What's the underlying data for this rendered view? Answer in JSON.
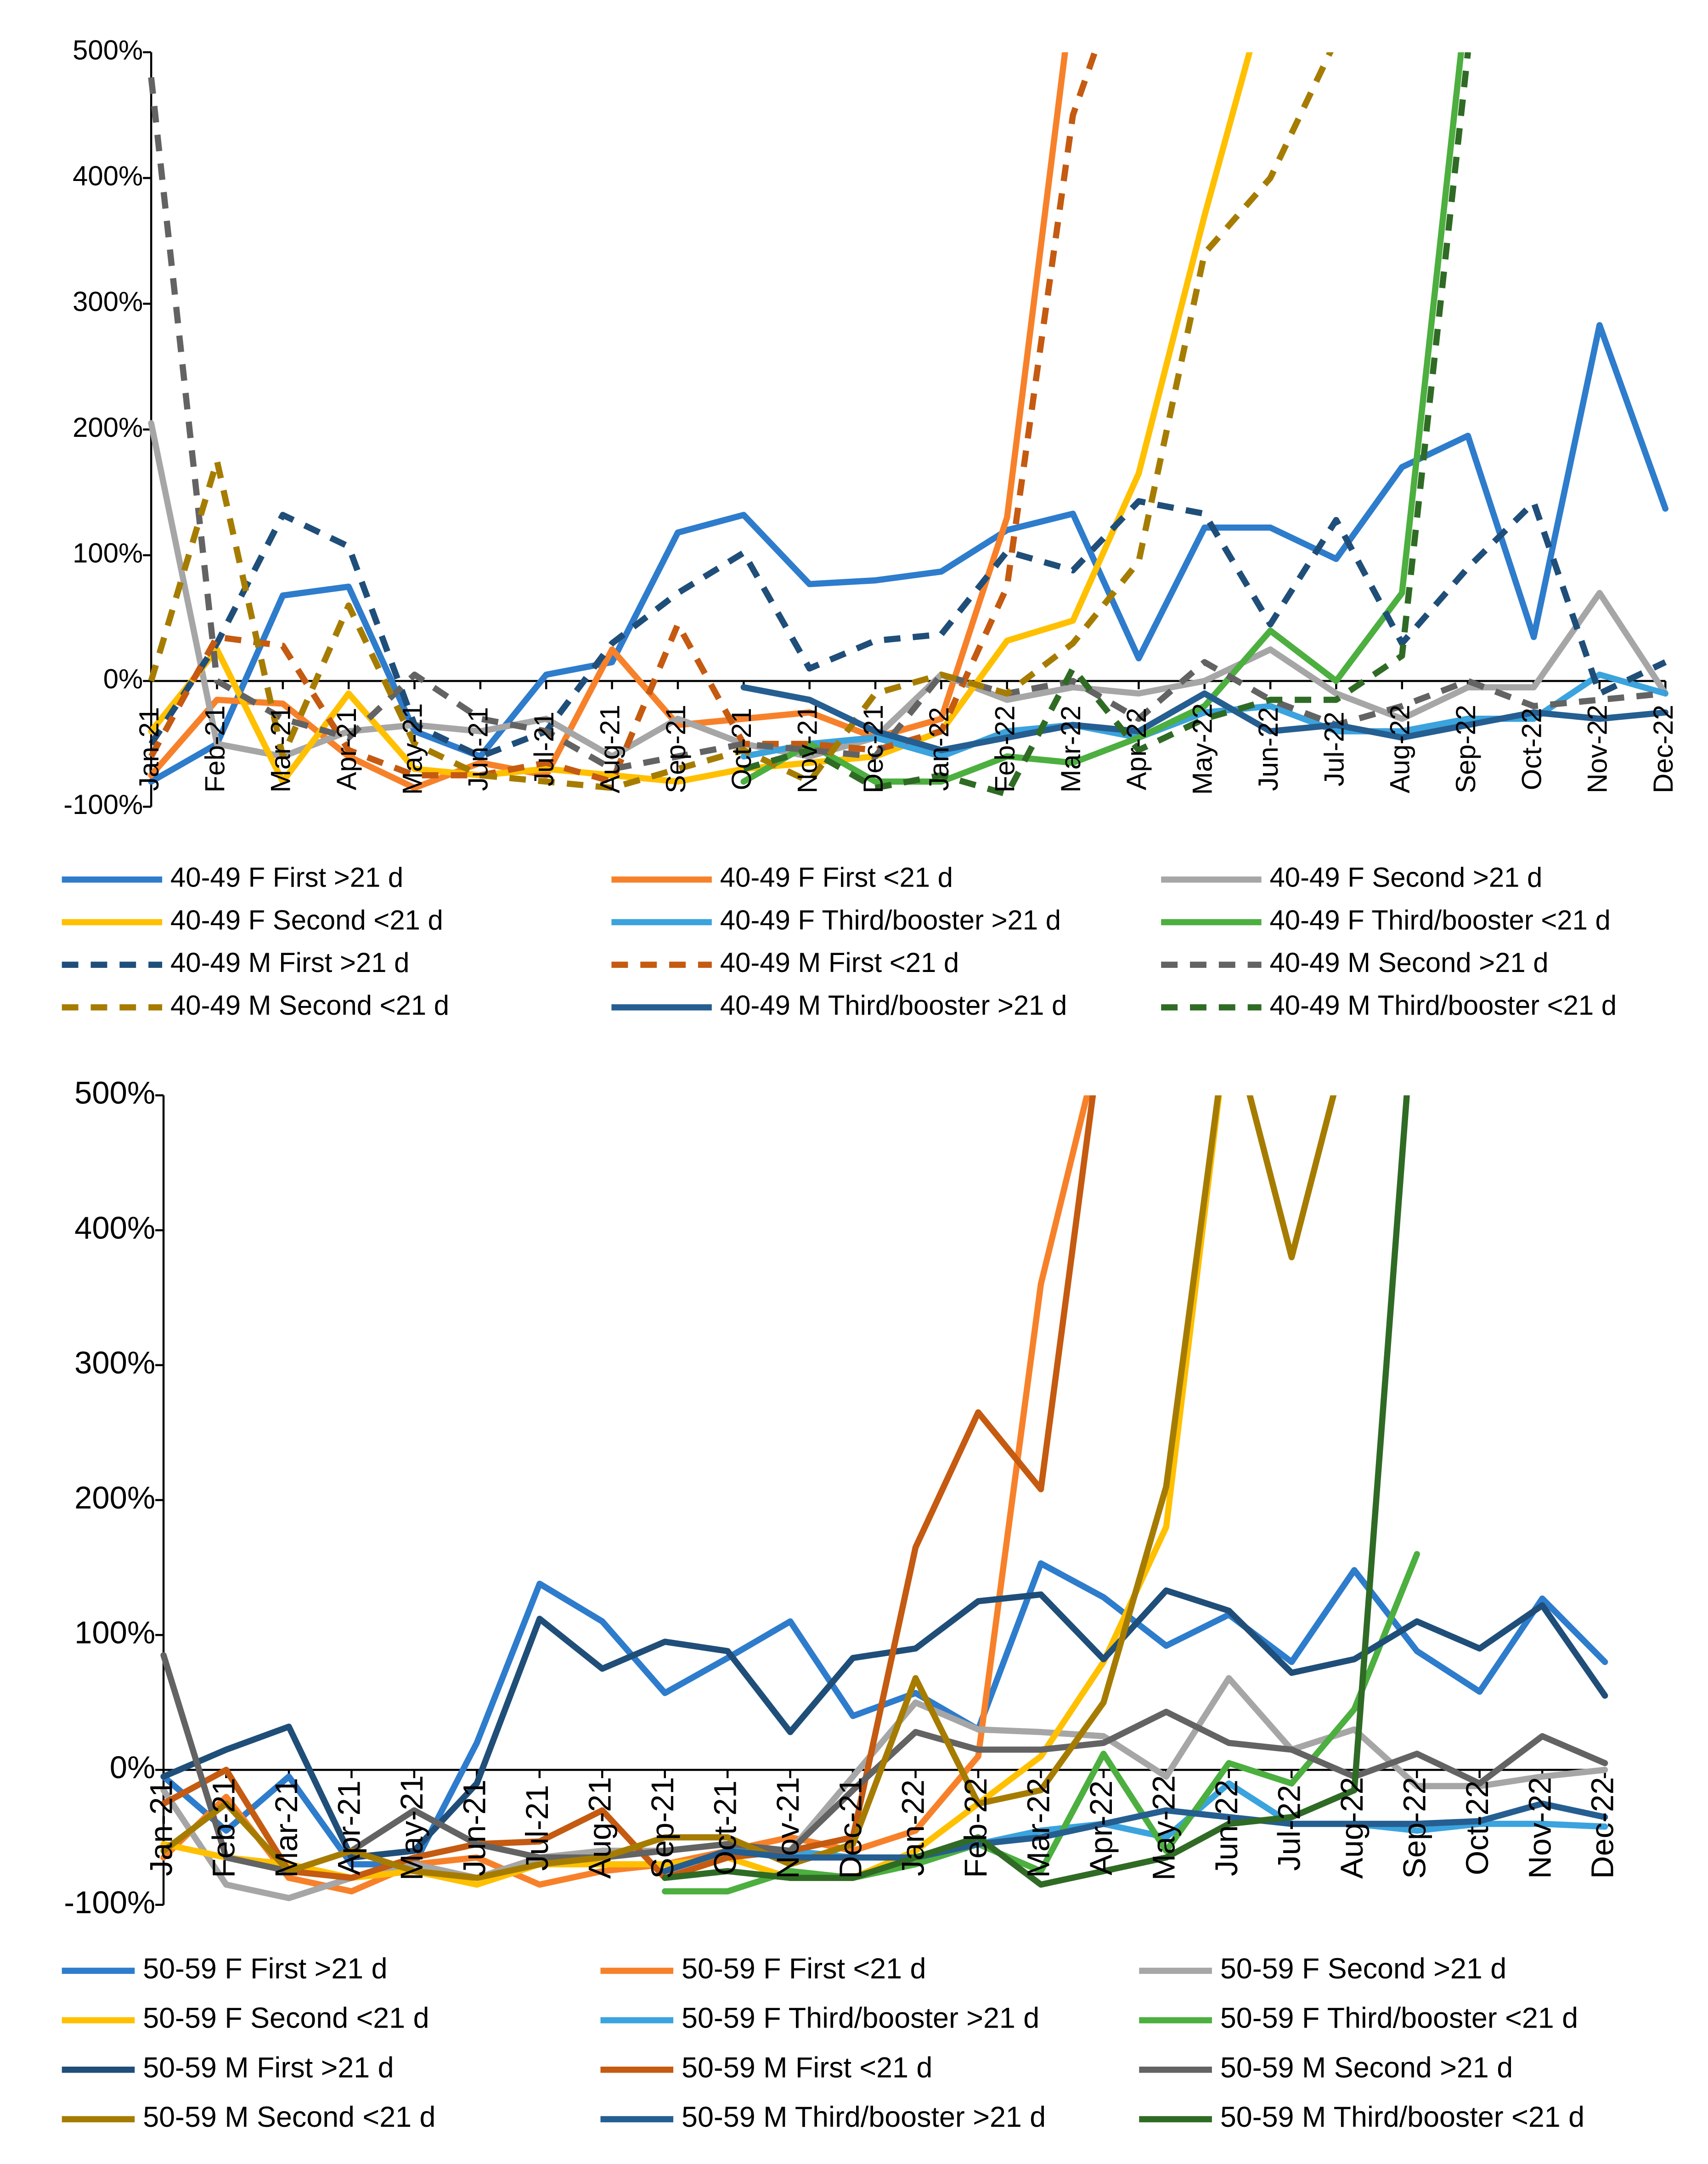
{
  "chart_data": [
    {
      "type": "line",
      "legend": "bottom",
      "categories": [
        "Jan-21",
        "Feb-21",
        "Mar-21",
        "Apr-21",
        "May-21",
        "Jun-21",
        "Jul-21",
        "Aug-21",
        "Sep-21",
        "Oct-21",
        "Nov-21",
        "Dec-21",
        "Jan-22",
        "Feb-22",
        "Mar-22",
        "Apr-22",
        "May-22",
        "Jun-22",
        "Jul-22",
        "Aug-22",
        "Sep-22",
        "Oct-22",
        "Nov-22",
        "Dec-22"
      ],
      "ylim": [
        -100,
        500
      ],
      "yticks": [
        {
          "value": -100,
          "label": "-100%"
        },
        {
          "value": 0,
          "label": "0%"
        },
        {
          "value": 100,
          "label": "100%"
        },
        {
          "value": 200,
          "label": "200%"
        },
        {
          "value": 300,
          "label": "300%"
        },
        {
          "value": 400,
          "label": "400%"
        },
        {
          "value": 500,
          "label": "500%"
        }
      ],
      "series": [
        {
          "name": "40-49 F First >21 d",
          "color": "#2e7ccc",
          "dashed": false,
          "values": [
            -80,
            -50,
            68,
            75,
            -40,
            -60,
            5,
            15,
            118,
            132,
            77,
            80,
            87,
            120,
            133,
            18,
            122,
            122,
            97,
            170,
            195,
            35,
            283,
            137
          ]
        },
        {
          "name": "40-49 F First <21 d",
          "color": "#f7812a",
          "dashed": false,
          "values": [
            -75,
            -15,
            -18,
            -60,
            -85,
            -65,
            -75,
            25,
            -35,
            -30,
            -25,
            -45,
            -30,
            130,
            550,
            null,
            null,
            null,
            null,
            null,
            null,
            null,
            null,
            null
          ]
        },
        {
          "name": "40-49 F Second >21 d",
          "color": "#a6a6a6",
          "dashed": false,
          "values": [
            205,
            -50,
            -60,
            -40,
            -35,
            -40,
            -30,
            -60,
            -30,
            -50,
            -60,
            -45,
            5,
            -15,
            -5,
            -10,
            0,
            25,
            -10,
            -30,
            -5,
            -5,
            70,
            -10
          ]
        },
        {
          "name": "40-49 F Second <21 d",
          "color": "#ffc000",
          "dashed": false,
          "values": [
            -40,
            25,
            -80,
            -10,
            -70,
            -75,
            -70,
            -75,
            -80,
            -70,
            -65,
            -60,
            -40,
            32,
            48,
            165,
            370,
            560,
            null,
            null,
            null,
            null,
            null,
            null
          ]
        },
        {
          "name": "40-49 F Third/booster >21 d",
          "color": "#3ba3dd",
          "dashed": false,
          "values": [
            null,
            null,
            null,
            null,
            null,
            null,
            null,
            null,
            null,
            -60,
            -50,
            -45,
            -60,
            -40,
            -35,
            -45,
            -25,
            -20,
            -40,
            -40,
            -30,
            -30,
            5,
            -10
          ]
        },
        {
          "name": "40-49 F Third/booster <21 d",
          "color": "#4caf3f",
          "dashed": false,
          "values": [
            null,
            null,
            null,
            null,
            null,
            null,
            null,
            null,
            null,
            -80,
            -50,
            -80,
            -80,
            -60,
            -65,
            -45,
            -20,
            40,
            0,
            70,
            550,
            null,
            null,
            null
          ]
        },
        {
          "name": "40-49 M First >21 d",
          "color": "#1f4e79",
          "dashed": true,
          "values": [
            -50,
            30,
            132,
            107,
            -35,
            -60,
            -40,
            30,
            70,
            102,
            10,
            32,
            37,
            103,
            88,
            143,
            133,
            45,
            128,
            30,
            90,
            142,
            -10,
            15
          ]
        },
        {
          "name": "40-49 M First <21 d",
          "color": "#c55a11",
          "dashed": true,
          "values": [
            -60,
            35,
            28,
            -55,
            -75,
            -75,
            -65,
            -80,
            45,
            -50,
            -50,
            -55,
            -40,
            75,
            450,
            600,
            null,
            null,
            null,
            null,
            null,
            null,
            null,
            null
          ]
        },
        {
          "name": "40-49 M Second >21 d",
          "color": "#636363",
          "dashed": true,
          "values": [
            480,
            0,
            -30,
            -45,
            5,
            -30,
            -40,
            -70,
            -60,
            -50,
            -55,
            -60,
            5,
            -10,
            0,
            -30,
            15,
            -15,
            -35,
            -20,
            0,
            -20,
            -15,
            -10
          ]
        },
        {
          "name": "40-49 M Second <21 d",
          "color": "#a67c00",
          "dashed": true,
          "values": [
            0,
            175,
            -60,
            60,
            -50,
            -75,
            -80,
            -85,
            -70,
            -55,
            -80,
            -10,
            5,
            -10,
            30,
            95,
            340,
            400,
            510,
            null,
            null,
            null,
            null,
            null
          ]
        },
        {
          "name": "40-49 M Third/booster >21 d",
          "color": "#255e91",
          "dashed": false,
          "values": [
            null,
            null,
            null,
            null,
            null,
            null,
            null,
            null,
            null,
            -5,
            -15,
            -40,
            -55,
            -45,
            -35,
            -40,
            -10,
            -40,
            -35,
            -45,
            -35,
            -25,
            -30,
            -25
          ]
        },
        {
          "name": "40-49 M Third/booster <21 d",
          "color": "#2f6b25",
          "dashed": true,
          "values": [
            null,
            null,
            null,
            null,
            null,
            null,
            null,
            null,
            null,
            -70,
            -55,
            -85,
            -75,
            -90,
            10,
            -55,
            -30,
            -15,
            -15,
            20,
            500,
            null,
            null,
            null
          ]
        }
      ]
    },
    {
      "type": "line",
      "legend": "bottom",
      "categories": [
        "Jan-21",
        "Feb-21",
        "Mar-21",
        "Apr-21",
        "May-21",
        "Jun-21",
        "Jul-21",
        "Aug-21",
        "Sep-21",
        "Oct-21",
        "Nov-21",
        "Dec-21",
        "Jan-22",
        "Feb-22",
        "Mar-22",
        "Apr-22",
        "May-22",
        "Jun-22",
        "Jul-22",
        "Aug-22",
        "Sep-22",
        "Oct-22",
        "Nov-22",
        "Dec-22"
      ],
      "ylim": [
        -100,
        500
      ],
      "yticks": [
        {
          "value": -100,
          "label": "-100%"
        },
        {
          "value": 0,
          "label": "0%"
        },
        {
          "value": 100,
          "label": "100%"
        },
        {
          "value": 200,
          "label": "200%"
        },
        {
          "value": 300,
          "label": "300%"
        },
        {
          "value": 400,
          "label": "400%"
        },
        {
          "value": 500,
          "label": "500%"
        }
      ],
      "series": [
        {
          "name": "50-59 F First >21 d",
          "color": "#2e7ccc",
          "dashed": false,
          "values": [
            -5,
            -45,
            -5,
            -70,
            -70,
            20,
            138,
            110,
            57,
            83,
            110,
            40,
            57,
            30,
            153,
            128,
            92,
            115,
            80,
            148,
            88,
            58,
            127,
            80
          ]
        },
        {
          "name": "50-59 F First <21 d",
          "color": "#f7812a",
          "dashed": false,
          "values": [
            -65,
            -20,
            -80,
            -90,
            -70,
            -65,
            -85,
            -75,
            -70,
            -60,
            -50,
            -60,
            -45,
            10,
            360,
            550,
            null,
            null,
            null,
            null,
            null,
            null,
            null,
            null
          ]
        },
        {
          "name": "50-59 F Second >21 d",
          "color": "#a6a6a6",
          "dashed": false,
          "values": [
            -15,
            -85,
            -95,
            -80,
            -70,
            -80,
            -65,
            -60,
            -60,
            -55,
            -60,
            -5,
            50,
            30,
            28,
            25,
            -5,
            68,
            15,
            30,
            -12,
            -12,
            -5,
            0
          ]
        },
        {
          "name": "50-59 F Second <21 d",
          "color": "#ffc000",
          "dashed": false,
          "values": [
            -55,
            -65,
            -70,
            -80,
            -75,
            -85,
            -70,
            -70,
            -70,
            -65,
            -80,
            -80,
            -60,
            -25,
            10,
            80,
            180,
            560,
            null,
            null,
            null,
            null,
            null,
            null
          ]
        },
        {
          "name": "50-59 F Third/booster >21 d",
          "color": "#3ba3dd",
          "dashed": false,
          "values": [
            null,
            null,
            null,
            null,
            null,
            null,
            null,
            null,
            null,
            -60,
            -60,
            -65,
            -65,
            -55,
            -45,
            -40,
            -50,
            -10,
            -40,
            -40,
            -45,
            -40,
            -40,
            -42
          ]
        },
        {
          "name": "50-59 F Third/booster <21 d",
          "color": "#4caf3f",
          "dashed": false,
          "values": [
            null,
            null,
            null,
            null,
            null,
            null,
            null,
            null,
            -90,
            -90,
            -75,
            -80,
            -70,
            -55,
            -75,
            12,
            -60,
            5,
            -10,
            45,
            160,
            null,
            null,
            null
          ]
        },
        {
          "name": "50-59 M First >21 d",
          "color": "#1f4e79",
          "dashed": false,
          "values": [
            -5,
            15,
            32,
            -65,
            -60,
            -10,
            112,
            75,
            95,
            88,
            28,
            83,
            90,
            125,
            130,
            82,
            133,
            118,
            72,
            82,
            110,
            90,
            122,
            55
          ]
        },
        {
          "name": "50-59 M First <21 d",
          "color": "#c55a11",
          "dashed": false,
          "values": [
            -25,
            0,
            -75,
            -80,
            -65,
            -55,
            -53,
            -30,
            -80,
            -65,
            -60,
            -50,
            165,
            265,
            208,
            560,
            null,
            null,
            null,
            null,
            null,
            null,
            null,
            null
          ]
        },
        {
          "name": "50-59 M Second >21 d",
          "color": "#636363",
          "dashed": false,
          "values": [
            85,
            -65,
            -75,
            -60,
            -30,
            -55,
            -65,
            -65,
            -60,
            -55,
            -60,
            -15,
            28,
            15,
            15,
            20,
            43,
            20,
            15,
            -5,
            12,
            -10,
            25,
            5
          ]
        },
        {
          "name": "50-59 M Second <21 d",
          "color": "#a67c00",
          "dashed": false,
          "values": [
            -60,
            -25,
            -75,
            -60,
            -75,
            -80,
            -70,
            -65,
            -50,
            -50,
            -70,
            -55,
            68,
            -25,
            -15,
            50,
            210,
            560,
            380,
            560,
            null,
            null,
            null,
            null
          ]
        },
        {
          "name": "50-59 M Third/booster >21 d",
          "color": "#255e91",
          "dashed": false,
          "values": [
            null,
            null,
            null,
            null,
            null,
            null,
            null,
            null,
            -75,
            -60,
            -65,
            -65,
            -65,
            -55,
            -50,
            -40,
            -30,
            -35,
            -40,
            -40,
            -40,
            -38,
            -25,
            -35
          ]
        },
        {
          "name": "50-59 M Third/booster <21 d",
          "color": "#2f6b25",
          "dashed": false,
          "values": [
            null,
            null,
            null,
            null,
            null,
            null,
            null,
            null,
            -80,
            -75,
            -80,
            -80,
            -65,
            -50,
            -85,
            -75,
            -65,
            -40,
            -35,
            -15,
            600,
            null,
            null,
            null
          ]
        }
      ]
    }
  ]
}
